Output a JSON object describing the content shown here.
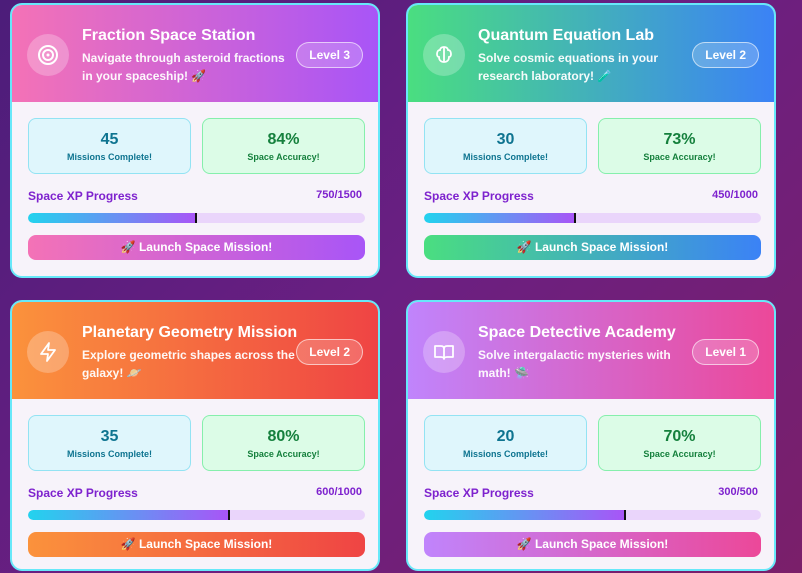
{
  "cards": [
    {
      "title": "Fraction Space Station",
      "description": "Navigate through asteroid fractions in your spaceship! 🚀",
      "level": "Level 3",
      "missions": "45",
      "missions_label": "Missions Complete!",
      "accuracy": "84%",
      "accuracy_label": "Space Accuracy!",
      "xp_title": "Space XP Progress",
      "xp": {
        "value": 750,
        "max": 1500,
        "label": "750/1500"
      },
      "button": "🚀 Launch Space Mission!"
    },
    {
      "title": "Quantum Equation Lab",
      "description": "Solve cosmic equations in your research laboratory! 🧪",
      "level": "Level 2",
      "missions": "30",
      "missions_label": "Missions Complete!",
      "accuracy": "73%",
      "accuracy_label": "Space Accuracy!",
      "xp_title": "Space XP Progress",
      "xp": {
        "value": 450,
        "max": 1000,
        "label": "450/1000"
      },
      "button": "🚀 Launch Space Mission!"
    },
    {
      "title": "Planetary Geometry Mission",
      "description": "Explore geometric shapes across the galaxy! 🪐",
      "level": "Level 2",
      "missions": "35",
      "missions_label": "Missions Complete!",
      "accuracy": "80%",
      "accuracy_label": "Space Accuracy!",
      "xp_title": "Space XP Progress",
      "xp": {
        "value": 600,
        "max": 1000,
        "label": "600/1000"
      },
      "button": "🚀 Launch Space Mission!"
    },
    {
      "title": "Space Detective Academy",
      "description": "Solve intergalactic mysteries with math! 🛸",
      "level": "Level 1",
      "missions": "20",
      "missions_label": "Missions Complete!",
      "accuracy": "70%",
      "accuracy_label": "Space Accuracy!",
      "xp_title": "Space XP Progress",
      "xp": {
        "value": 300,
        "max": 500,
        "label": "300/500"
      },
      "button": "🚀 Launch Space Mission!"
    }
  ]
}
